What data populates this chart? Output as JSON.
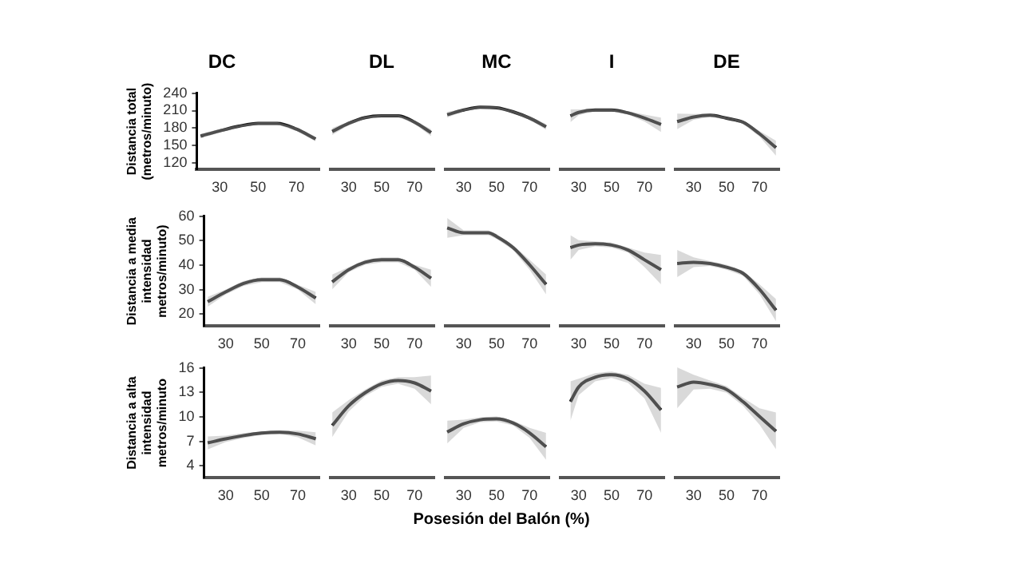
{
  "chart_data": [
    {
      "type": "line",
      "title": "DC",
      "ylabel": "Distancia total\n(metros/minuto)",
      "marker": "none",
      "xlim": [
        18,
        82
      ],
      "xticks": [
        30,
        50,
        70
      ],
      "ylim": [
        108,
        240
      ],
      "yticks": [
        120,
        150,
        180,
        210,
        240
      ],
      "series": [
        {
          "color": "#1a1a1a",
          "x": [
            20,
            30,
            40,
            50,
            60,
            70,
            80
          ],
          "values": [
            166,
            175,
            183,
            188,
            188,
            178,
            161
          ],
          "lower": [
            162,
            172,
            181,
            186,
            186,
            175,
            157
          ],
          "upper": [
            170,
            178,
            185,
            190,
            190,
            181,
            165
          ]
        }
      ]
    },
    {
      "type": "line",
      "title": "DL",
      "marker": "none",
      "tick_labels": "x",
      "xlim": [
        18,
        82
      ],
      "xticks": [
        30,
        50,
        70
      ],
      "ylim": [
        108,
        240
      ],
      "yticks": [
        120,
        150,
        180,
        210,
        240
      ],
      "series": [
        {
          "color": "#1a1a1a",
          "x": [
            20,
            30,
            40,
            50,
            60,
            70,
            80
          ],
          "values": [
            174,
            188,
            198,
            201,
            201,
            190,
            172
          ],
          "lower": [
            168,
            185,
            196,
            199,
            199,
            187,
            166
          ],
          "upper": [
            180,
            191,
            200,
            203,
            203,
            193,
            178
          ]
        }
      ]
    },
    {
      "type": "line",
      "title": "MC",
      "marker": "none",
      "tick_labels": "x",
      "xlim": [
        18,
        82
      ],
      "xticks": [
        30,
        50,
        70
      ],
      "ylim": [
        108,
        240
      ],
      "yticks": [
        120,
        150,
        180,
        210,
        240
      ],
      "series": [
        {
          "color": "#1a1a1a",
          "x": [
            20,
            30,
            40,
            50,
            60,
            70,
            80
          ],
          "values": [
            203,
            211,
            216,
            215,
            208,
            197,
            182
          ],
          "lower": [
            198,
            209,
            214,
            213,
            206,
            194,
            177
          ],
          "upper": [
            208,
            213,
            218,
            217,
            210,
            200,
            187
          ]
        }
      ]
    },
    {
      "type": "line",
      "title": "I",
      "marker": "none",
      "tick_labels": "x",
      "xlim": [
        18,
        82
      ],
      "xticks": [
        30,
        50,
        70
      ],
      "ylim": [
        108,
        240
      ],
      "yticks": [
        120,
        150,
        180,
        210,
        240
      ],
      "series": [
        {
          "color": "#1a1a1a",
          "x": [
            25,
            30,
            40,
            50,
            60,
            70,
            80
          ],
          "values": [
            201,
            207,
            211,
            211,
            206,
            197,
            186
          ],
          "lower": [
            190,
            202,
            209,
            209,
            203,
            191,
            173
          ],
          "upper": [
            212,
            212,
            213,
            213,
            209,
            203,
            198
          ]
        }
      ]
    },
    {
      "type": "line",
      "title": "DE",
      "marker": "none",
      "tick_labels": "x",
      "xlim": [
        18,
        82
      ],
      "xticks": [
        30,
        50,
        70
      ],
      "ylim": [
        108,
        240
      ],
      "yticks": [
        120,
        150,
        180,
        210,
        240
      ],
      "series": [
        {
          "color": "#1a1a1a",
          "x": [
            20,
            30,
            40,
            50,
            55,
            60,
            70,
            80
          ],
          "values": [
            191,
            199,
            202,
            197,
            194,
            190,
            170,
            146
          ],
          "lower": [
            178,
            194,
            199,
            195,
            192,
            187,
            165,
            132
          ],
          "upper": [
            205,
            204,
            205,
            199,
            196,
            193,
            175,
            158
          ]
        }
      ]
    },
    {
      "type": "line",
      "ylabel": "Distancia a media intensidad\nmetros/minuto)",
      "marker": "none",
      "xlim": [
        18,
        82
      ],
      "xticks": [
        30,
        50,
        70
      ],
      "ylim": [
        15,
        60
      ],
      "yticks": [
        20,
        30,
        40,
        50,
        60
      ],
      "series": [
        {
          "color": "#1a1a1a",
          "x": [
            20,
            30,
            40,
            50,
            60,
            70,
            80
          ],
          "values": [
            25,
            29,
            32.5,
            34,
            34,
            31,
            26.5
          ],
          "lower": [
            23,
            28,
            31.5,
            33,
            33,
            30,
            24
          ],
          "upper": [
            27,
            30,
            33.5,
            35,
            35,
            32,
            29
          ]
        }
      ]
    },
    {
      "type": "line",
      "marker": "none",
      "tick_labels": "x",
      "xlim": [
        18,
        82
      ],
      "xticks": [
        30,
        50,
        70
      ],
      "ylim": [
        15,
        60
      ],
      "yticks": [
        20,
        30,
        40,
        50,
        60
      ],
      "series": [
        {
          "color": "#1a1a1a",
          "x": [
            20,
            30,
            40,
            50,
            60,
            70,
            80
          ],
          "values": [
            33,
            38,
            41,
            42,
            42,
            39,
            34.5
          ],
          "lower": [
            30,
            37,
            40,
            41,
            41,
            38,
            31
          ],
          "upper": [
            36,
            39,
            42,
            43,
            43,
            40,
            38
          ]
        }
      ]
    },
    {
      "type": "line",
      "marker": "none",
      "tick_labels": "x",
      "xlim": [
        18,
        82
      ],
      "xticks": [
        30,
        50,
        70
      ],
      "ylim": [
        15,
        60
      ],
      "yticks": [
        20,
        30,
        40,
        50,
        60
      ],
      "series": [
        {
          "color": "#1a1a1a",
          "x": [
            20,
            30,
            40,
            45,
            50,
            60,
            70,
            80
          ],
          "values": [
            55,
            53,
            53,
            53,
            51.5,
            47,
            40,
            32
          ],
          "lower": [
            51,
            52,
            52,
            52,
            50.5,
            46,
            38,
            28
          ],
          "upper": [
            59,
            54,
            54,
            54,
            52.5,
            48,
            42,
            36
          ]
        }
      ]
    },
    {
      "type": "line",
      "marker": "none",
      "tick_labels": "x",
      "xlim": [
        18,
        82
      ],
      "xticks": [
        30,
        50,
        70
      ],
      "ylim": [
        15,
        60
      ],
      "yticks": [
        20,
        30,
        40,
        50,
        60
      ],
      "series": [
        {
          "color": "#1a1a1a",
          "x": [
            25,
            30,
            40,
            50,
            60,
            70,
            80
          ],
          "values": [
            47,
            48,
            48.5,
            48,
            46,
            42,
            38
          ],
          "lower": [
            42,
            46,
            47.5,
            47,
            45,
            39,
            32
          ],
          "upper": [
            52,
            50,
            49.5,
            49,
            47,
            45,
            44
          ]
        }
      ]
    },
    {
      "type": "line",
      "marker": "none",
      "tick_labels": "x",
      "xlim": [
        18,
        82
      ],
      "xticks": [
        30,
        50,
        70
      ],
      "ylim": [
        15,
        60
      ],
      "yticks": [
        20,
        30,
        40,
        50,
        60
      ],
      "series": [
        {
          "color": "#1a1a1a",
          "x": [
            20,
            30,
            40,
            50,
            60,
            70,
            80
          ],
          "values": [
            40.5,
            41,
            40.5,
            39,
            36.5,
            30,
            21.5
          ],
          "lower": [
            35,
            39,
            39.5,
            38,
            35.5,
            28,
            17
          ],
          "upper": [
            46,
            43,
            41.5,
            40,
            37.5,
            32,
            26
          ]
        }
      ]
    },
    {
      "type": "line",
      "ylabel": "Distancia a alta intensidad\nmetros/minuto",
      "marker": "none",
      "xlim": [
        18,
        82
      ],
      "xticks": [
        30,
        50,
        70
      ],
      "ylim": [
        2.5,
        16
      ],
      "yticks": [
        4,
        7,
        10,
        13,
        16
      ],
      "series": [
        {
          "color": "#1a1a1a",
          "x": [
            20,
            30,
            40,
            50,
            60,
            70,
            80
          ],
          "values": [
            6.8,
            7.3,
            7.7,
            8,
            8.1,
            7.9,
            7.3
          ],
          "lower": [
            6,
            6.9,
            7.4,
            7.8,
            7.9,
            7.5,
            6.5
          ],
          "upper": [
            7.6,
            7.7,
            8,
            8.2,
            8.3,
            8.3,
            8.1
          ]
        }
      ]
    },
    {
      "type": "line",
      "marker": "none",
      "tick_labels": "x",
      "xlim": [
        18,
        82
      ],
      "xticks": [
        30,
        50,
        70
      ],
      "ylim": [
        2.5,
        16
      ],
      "yticks": [
        4,
        7,
        10,
        13,
        16
      ],
      "series": [
        {
          "color": "#1a1a1a",
          "x": [
            20,
            30,
            40,
            50,
            60,
            70,
            80
          ],
          "values": [
            8.9,
            11.3,
            12.9,
            14,
            14.4,
            14.1,
            13.1
          ],
          "lower": [
            7.5,
            10.6,
            12.5,
            13.6,
            14,
            13.4,
            11.5
          ],
          "upper": [
            10.5,
            12,
            13.3,
            14.4,
            14.8,
            14.8,
            15
          ]
        }
      ]
    },
    {
      "type": "line",
      "marker": "none",
      "tick_labels": "x",
      "xlim": [
        18,
        82
      ],
      "xticks": [
        30,
        50,
        70
      ],
      "ylim": [
        2.5,
        16
      ],
      "yticks": [
        4,
        7,
        10,
        13,
        16
      ],
      "series": [
        {
          "color": "#1a1a1a",
          "x": [
            20,
            30,
            40,
            50,
            60,
            70,
            80
          ],
          "values": [
            8.1,
            9.1,
            9.6,
            9.7,
            9.2,
            8,
            6.3
          ],
          "lower": [
            6.7,
            8.6,
            9.3,
            9.4,
            8.9,
            7.4,
            4.7
          ],
          "upper": [
            9.5,
            9.6,
            9.9,
            10,
            9.5,
            8.6,
            8
          ]
        }
      ],
      "xlabel": "Posesión del Balón (%)"
    },
    {
      "type": "line",
      "marker": "none",
      "tick_labels": "x",
      "xlim": [
        18,
        82
      ],
      "xticks": [
        30,
        50,
        70
      ],
      "ylim": [
        2.5,
        16
      ],
      "yticks": [
        4,
        7,
        10,
        13,
        16
      ],
      "series": [
        {
          "color": "#1a1a1a",
          "x": [
            25,
            30,
            40,
            50,
            60,
            70,
            80
          ],
          "values": [
            11.8,
            13.6,
            14.8,
            15.1,
            14.6,
            13.1,
            10.8
          ],
          "lower": [
            9.5,
            12.6,
            14.3,
            14.7,
            14.1,
            12.2,
            8
          ],
          "upper": [
            14.3,
            14.6,
            15.3,
            15.5,
            15.1,
            14,
            13.5
          ]
        }
      ]
    },
    {
      "type": "line",
      "marker": "none",
      "tick_labels": "x",
      "xlim": [
        18,
        82
      ],
      "xticks": [
        30,
        50,
        70
      ],
      "ylim": [
        2.5,
        16
      ],
      "yticks": [
        4,
        7,
        10,
        13,
        16
      ],
      "series": [
        {
          "color": "#1a1a1a",
          "x": [
            20,
            30,
            40,
            50,
            60,
            70,
            80
          ],
          "values": [
            13.6,
            14.2,
            13.9,
            13.3,
            11.8,
            10,
            8.2
          ],
          "lower": [
            11,
            13.3,
            13.4,
            12.9,
            11.3,
            9,
            6
          ],
          "upper": [
            16,
            15.1,
            14.4,
            13.7,
            12.3,
            11,
            10.5
          ]
        }
      ]
    }
  ]
}
